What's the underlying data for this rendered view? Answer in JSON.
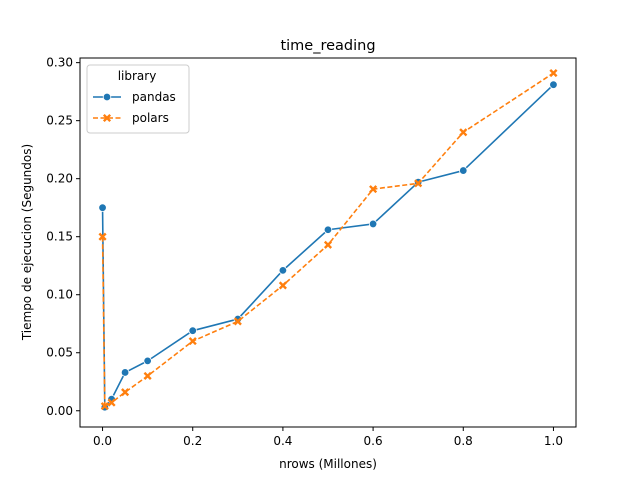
{
  "chart_data": {
    "type": "line",
    "title": "time_reading",
    "xlabel": "nrows (Millones)",
    "ylabel": "Tiempo de ejecucion (Segundos)",
    "xlim": [
      -0.05,
      1.05
    ],
    "ylim": [
      -0.014,
      0.304
    ],
    "xticks": [
      0.0,
      0.2,
      0.4,
      0.6,
      0.8,
      1.0
    ],
    "xtick_labels": [
      "0.0",
      "0.2",
      "0.4",
      "0.6",
      "0.8",
      "1.0"
    ],
    "yticks": [
      0.0,
      0.05,
      0.1,
      0.15,
      0.2,
      0.25,
      0.3
    ],
    "ytick_labels": [
      "0.00",
      "0.05",
      "0.10",
      "0.15",
      "0.20",
      "0.25",
      "0.30"
    ],
    "grid": false,
    "legend": {
      "title": "library",
      "placement": "top-left"
    },
    "series": [
      {
        "name": "pandas",
        "color": "#1f77b4",
        "marker": "circle",
        "linestyle": "solid",
        "x": [
          0.0,
          0.005,
          0.02,
          0.05,
          0.1,
          0.2,
          0.3,
          0.4,
          0.5,
          0.6,
          0.7,
          0.8,
          1.0
        ],
        "y": [
          0.175,
          0.003,
          0.01,
          0.033,
          0.043,
          0.069,
          0.079,
          0.121,
          0.156,
          0.161,
          0.197,
          0.207,
          0.281
        ]
      },
      {
        "name": "polars",
        "color": "#ff7f0e",
        "marker": "x",
        "linestyle": "dashed",
        "x": [
          0.0,
          0.005,
          0.02,
          0.05,
          0.1,
          0.2,
          0.3,
          0.4,
          0.5,
          0.6,
          0.7,
          0.8,
          1.0
        ],
        "y": [
          0.15,
          0.004,
          0.007,
          0.016,
          0.03,
          0.06,
          0.077,
          0.108,
          0.143,
          0.191,
          0.196,
          0.24,
          0.291
        ]
      }
    ]
  }
}
